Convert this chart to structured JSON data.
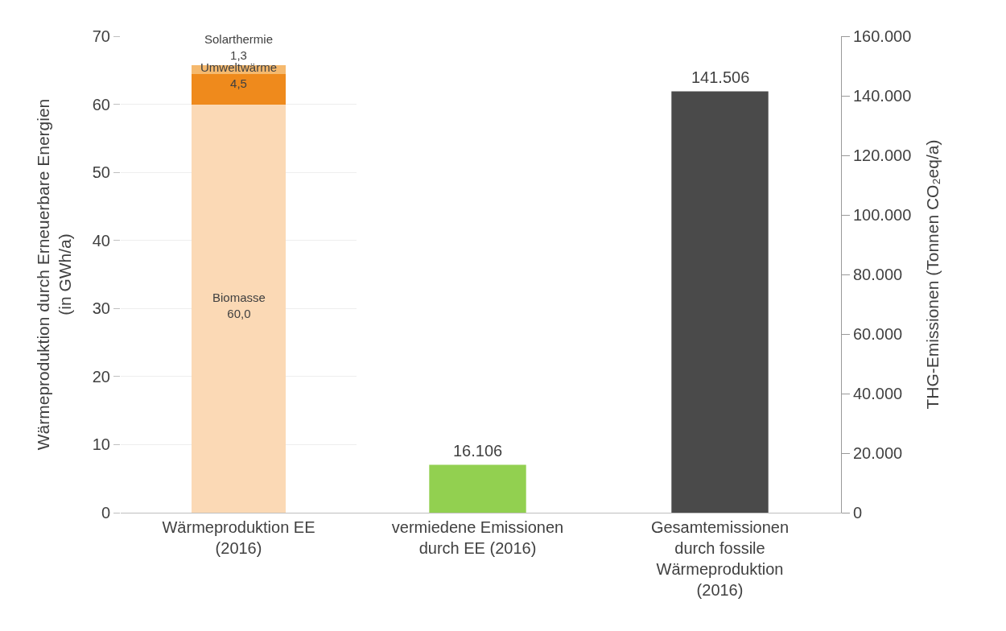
{
  "chart_data": [
    {
      "type": "bar",
      "stacked": true,
      "categories": [
        "Wärmeproduktion EE\n(2016)"
      ],
      "ylabel": "Wärmeproduktion durch Erneuerbare Energien\n(in GWh/a)",
      "ylim": [
        0,
        70
      ],
      "yticks": [
        0,
        10,
        20,
        30,
        40,
        50,
        60,
        70
      ],
      "grid": "y",
      "legend": false,
      "series": [
        {
          "name": "Biomasse",
          "color": "#fbd9b5",
          "values": [
            60.0
          ],
          "value_labels": [
            "60,0"
          ]
        },
        {
          "name": "Umweltwärme",
          "color": "#ef8a1c",
          "values": [
            4.5
          ],
          "value_labels": [
            "4,5"
          ]
        },
        {
          "name": "Solarthermie",
          "color": "#f5b96e",
          "values": [
            1.3
          ],
          "value_labels": [
            "1,3"
          ]
        }
      ]
    },
    {
      "type": "bar",
      "categories": [
        "vermiedene Emissionen\ndurch EE (2016)",
        "Gesamtemissionen\ndurch fossile\nWärmeproduktion\n(2016)"
      ],
      "y2label": "THG-Emissionen (Tonnen CO₂eq/a)",
      "y2lim": [
        0,
        160000
      ],
      "y2ticks": [
        0,
        {
          "value": 20000,
          "label": "20.000"
        },
        {
          "value": 40000,
          "label": "40.000"
        },
        {
          "value": 60000,
          "label": "60.000"
        },
        {
          "value": 80000,
          "label": "80.000"
        },
        {
          "value": 100000,
          "label": "100.000"
        },
        {
          "value": 120000,
          "label": "120.000"
        },
        {
          "value": 140000,
          "label": "140.000"
        },
        {
          "value": 160000,
          "label": "160.000"
        }
      ],
      "legend": false,
      "series": [
        {
          "axis": "y2",
          "colors": [
            "#92d050",
            "#4a4a4a"
          ],
          "values": [
            16106,
            141506
          ],
          "value_labels": [
            "16.106",
            "141.506"
          ]
        }
      ]
    }
  ]
}
